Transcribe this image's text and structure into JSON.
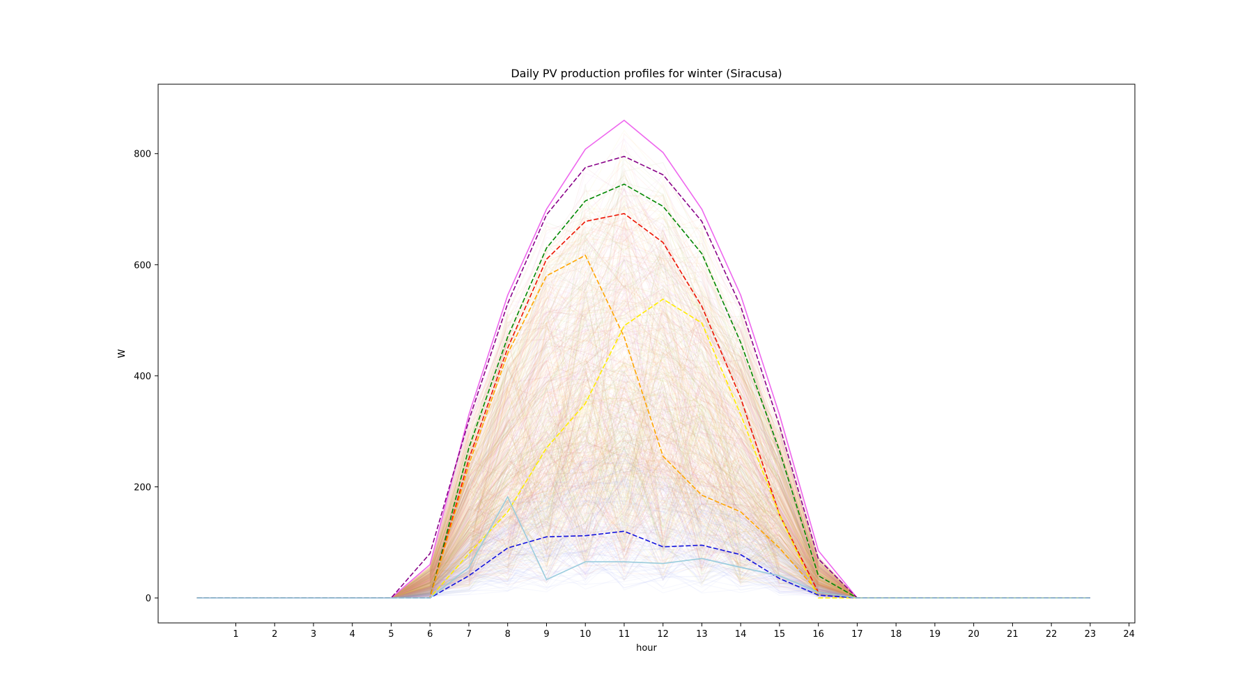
{
  "chart_data": {
    "type": "line",
    "title": "Daily PV production profiles for winter (Siracusa)",
    "xlabel": "hour",
    "ylabel": "W",
    "xlim": [
      -1.0,
      24.15
    ],
    "ylim": [
      -45,
      925
    ],
    "xticks": [
      1,
      2,
      3,
      4,
      5,
      6,
      7,
      8,
      9,
      10,
      11,
      12,
      13,
      14,
      15,
      16,
      17,
      18,
      19,
      20,
      21,
      22,
      23,
      24
    ],
    "yticks": [
      0,
      200,
      400,
      600,
      800
    ],
    "x": [
      0,
      1,
      2,
      3,
      4,
      5,
      6,
      7,
      8,
      9,
      10,
      11,
      12,
      13,
      14,
      15,
      16,
      17,
      18,
      19,
      20,
      21,
      22,
      23
    ],
    "background_profiles": {
      "description_colors": [
        "#dd88dd",
        "#cc6666",
        "#88aa44",
        "#ff8866",
        "#ffbb66",
        "#eedd66",
        "#8899ee"
      ],
      "count": 700
    },
    "series": [
      {
        "name": "max (violet)",
        "color": "#ee66ee",
        "dash": "solid",
        "values": [
          0,
          0,
          0,
          0,
          0,
          0,
          60,
          330,
          545,
          700,
          808,
          860,
          802,
          700,
          545,
          330,
          85,
          0,
          0,
          0,
          0,
          0,
          0,
          0
        ]
      },
      {
        "name": "purple dashed",
        "color": "#880088",
        "dash": "dashed",
        "values": [
          0,
          0,
          0,
          0,
          0,
          0,
          80,
          320,
          530,
          690,
          775,
          795,
          762,
          678,
          525,
          310,
          70,
          0,
          0,
          0,
          0,
          0,
          0,
          0
        ]
      },
      {
        "name": "green dashed",
        "color": "#008800",
        "dash": "dashed",
        "values": [
          0,
          0,
          0,
          0,
          0,
          0,
          0,
          270,
          470,
          630,
          715,
          745,
          705,
          620,
          460,
          265,
          40,
          0,
          0,
          0,
          0,
          0,
          0,
          0
        ]
      },
      {
        "name": "red dashed",
        "color": "#ee1100",
        "dash": "dashed",
        "values": [
          0,
          0,
          0,
          0,
          0,
          0,
          0,
          250,
          450,
          610,
          678,
          692,
          640,
          525,
          360,
          150,
          10,
          0,
          0,
          0,
          0,
          0,
          0,
          0
        ]
      },
      {
        "name": "orange dashed",
        "color": "#ffa500",
        "dash": "dashed",
        "values": [
          0,
          0,
          0,
          0,
          0,
          0,
          0,
          240,
          440,
          580,
          617,
          470,
          255,
          185,
          155,
          90,
          10,
          0,
          0,
          0,
          0,
          0,
          0,
          0
        ]
      },
      {
        "name": "yellow dashed",
        "color": "#ffee00",
        "dash": "dashed",
        "values": [
          0,
          0,
          0,
          0,
          0,
          0,
          0,
          80,
          155,
          270,
          350,
          490,
          538,
          495,
          330,
          150,
          0,
          0,
          0,
          0,
          0,
          0,
          0,
          0
        ]
      },
      {
        "name": "blue dashed",
        "color": "#1111dd",
        "dash": "dashed",
        "values": [
          0,
          0,
          0,
          0,
          0,
          0,
          0,
          40,
          90,
          110,
          112,
          120,
          92,
          95,
          78,
          35,
          5,
          0,
          0,
          0,
          0,
          0,
          0,
          0
        ]
      },
      {
        "name": "light blue",
        "color": "#99ccdd",
        "dash": "solid",
        "values": [
          0,
          0,
          0,
          0,
          0,
          0,
          0,
          55,
          182,
          33,
          65,
          65,
          62,
          71,
          55,
          40,
          10,
          0,
          0,
          0,
          0,
          0,
          0,
          0
        ]
      }
    ]
  }
}
